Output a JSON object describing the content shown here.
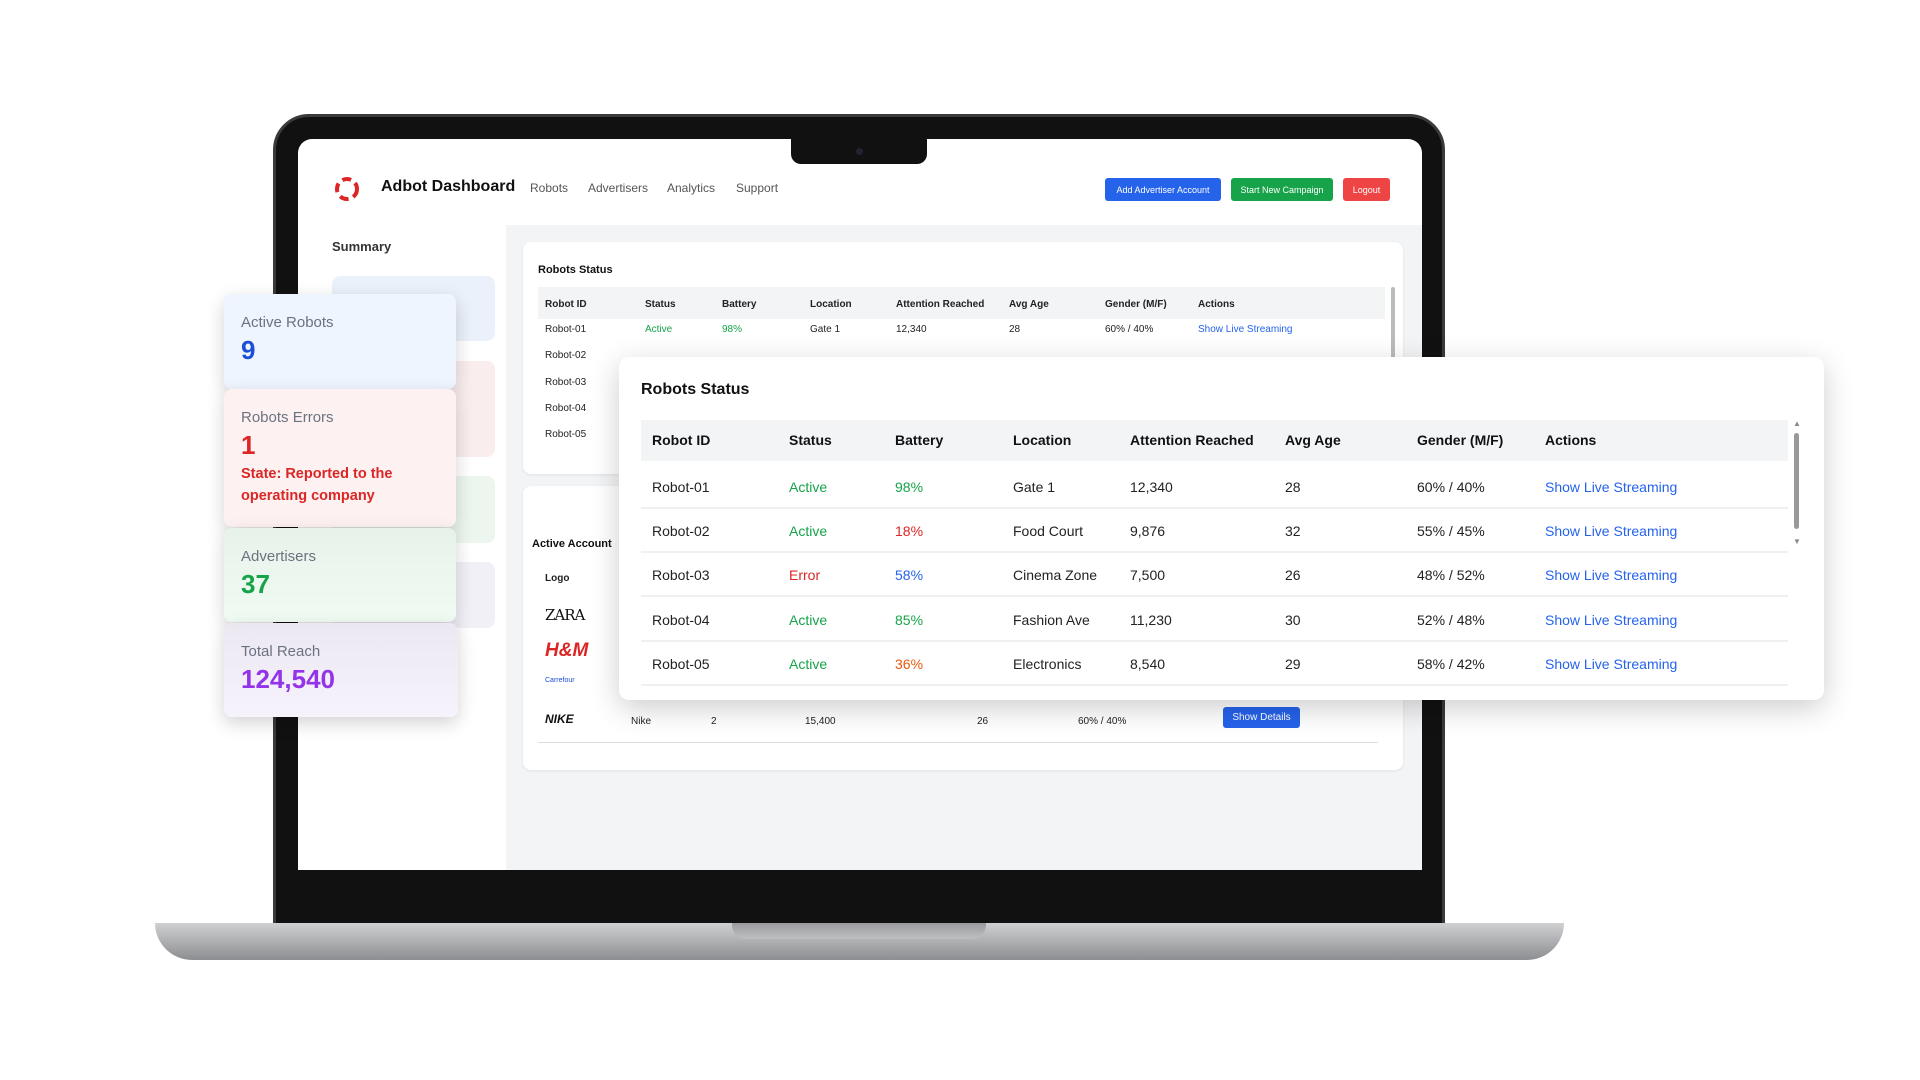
{
  "header": {
    "title": "Adbot Dashboard",
    "nav": [
      "Robots",
      "Advertisers",
      "Analytics",
      "Support"
    ],
    "buttons": {
      "add_advertiser": "Add Advertiser Account",
      "start_campaign": "Start New Campaign",
      "logout": "Logout"
    }
  },
  "sidebar": {
    "title": "Summary"
  },
  "stats": {
    "active_robots": {
      "label": "Active Robots",
      "value": "9"
    },
    "robot_errors": {
      "label": "Robots Errors",
      "value": "1",
      "note": "State: Reported to the operating company"
    },
    "advertisers": {
      "label": "Advertisers",
      "value": "37"
    },
    "total_reach": {
      "label": "Total Reach",
      "value": "124,540"
    }
  },
  "robots_status": {
    "title": "Robots Status",
    "columns": [
      "Robot ID",
      "Status",
      "Battery",
      "Location",
      "Attention Reached",
      "Avg Age",
      "Gender (M/F)",
      "Actions"
    ],
    "rows": [
      {
        "id": "Robot-01",
        "status": "Active",
        "battery": "98%",
        "location": "Gate 1",
        "attention": "12,340",
        "age": "28",
        "gender": "60% / 40%",
        "action": "Show Live Streaming"
      },
      {
        "id": "Robot-02",
        "status": "Active",
        "battery": "18%",
        "location": "Food Court",
        "attention": "9,876",
        "age": "32",
        "gender": "55% / 45%",
        "action": "Show Live Streaming"
      },
      {
        "id": "Robot-03",
        "status": "Error",
        "battery": "58%",
        "location": "Cinema Zone",
        "attention": "7,500",
        "age": "26",
        "gender": "48% / 52%",
        "action": "Show Live Streaming"
      },
      {
        "id": "Robot-04",
        "status": "Active",
        "battery": "85%",
        "location": "Fashion Ave",
        "attention": "11,230",
        "age": "30",
        "gender": "52% / 48%",
        "action": "Show Live Streaming"
      },
      {
        "id": "Robot-05",
        "status": "Active",
        "battery": "36%",
        "location": "Electronics",
        "attention": "8,540",
        "age": "29",
        "gender": "58% / 42%",
        "action": "Show Live Streaming"
      }
    ]
  },
  "active_accounts": {
    "title": "Active Account",
    "logo_header": "Logo",
    "logos": [
      "ZARA",
      "H&M",
      "Carrefour",
      "NIKE"
    ],
    "nike_row": {
      "name": "Nike",
      "robots": "2",
      "reach": "15,400",
      "age": "26",
      "gender": "60% / 40%",
      "action": "Show Details"
    }
  },
  "colors": {
    "active": "#16a34a",
    "error": "#dc2626",
    "battery_high": "#16a34a",
    "battery_low": "#dc2626",
    "battery_mid": "#2563eb",
    "battery_warn": "#ea580c",
    "link": "#2563eb",
    "primary_btn": "#2563eb",
    "success_btn": "#16a34a",
    "danger_btn": "#ef4444",
    "reach": "#9333ea"
  }
}
